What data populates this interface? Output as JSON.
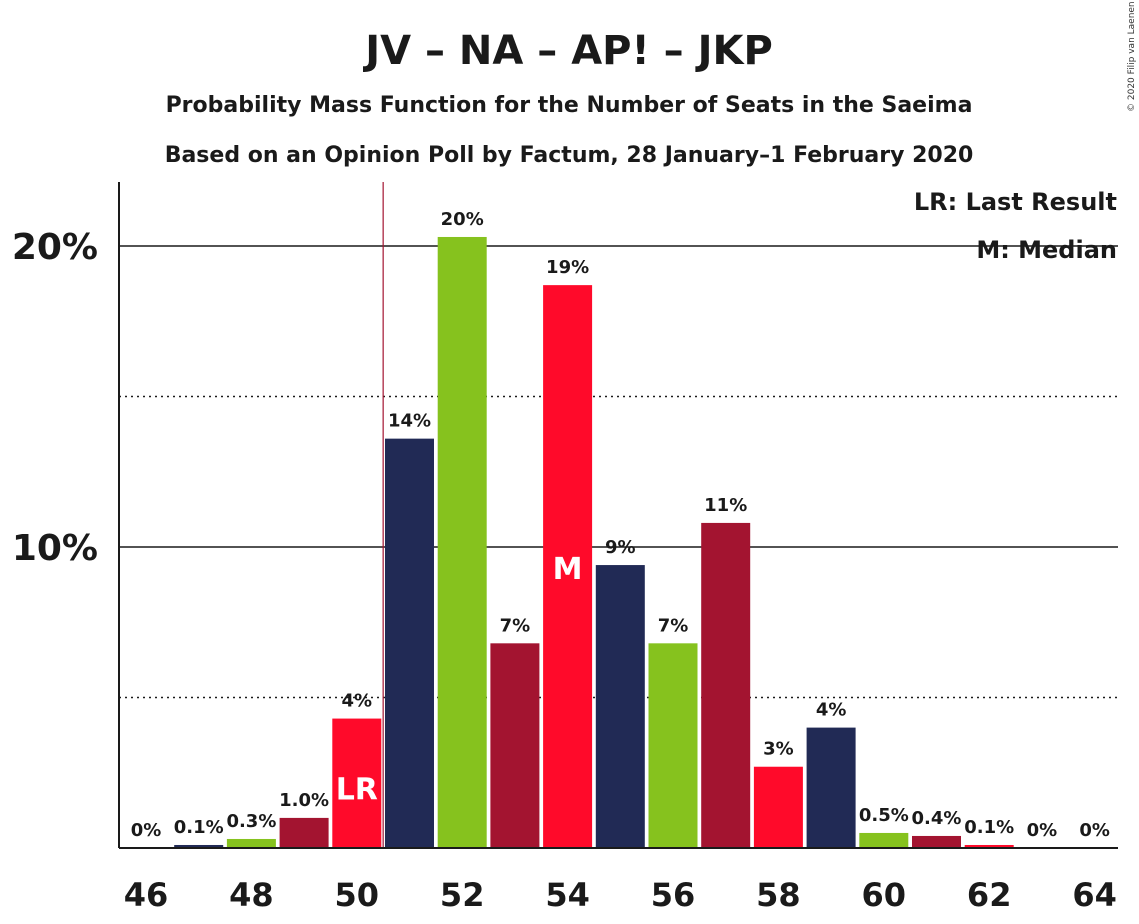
{
  "chart_data": {
    "type": "bar",
    "title": "JV – NA – AP! – JKP",
    "subtitle_1": "Probability Mass Function for the Number of Seats in the Saeima",
    "subtitle_2": "Based on an Opinion Poll by Factum, 28 January–1 February 2020",
    "credit": "© 2020 Filip van Laenen",
    "xlabel": "",
    "ylabel": "",
    "ylim": [
      0,
      22
    ],
    "x_tick_labels": [
      "46",
      "48",
      "50",
      "52",
      "54",
      "56",
      "58",
      "60",
      "62",
      "64"
    ],
    "y_tick_labels": [
      {
        "value": 10,
        "label": "10%"
      },
      {
        "value": 20,
        "label": "20%"
      }
    ],
    "grid": "solid at 10% and 20%, dotted at 5% and 15%",
    "legend": {
      "placement": "top-right",
      "entries": [
        "LR: Last Result",
        "M: Median"
      ]
    },
    "last_result_seat": 50.5,
    "last_result_marker": "LR",
    "median_marker": "M",
    "bars": [
      {
        "seat": 46,
        "value": 0.0,
        "label": "0%",
        "color": "#212a55"
      },
      {
        "seat": 47,
        "value": 0.1,
        "label": "0.1%",
        "color": "#212a55"
      },
      {
        "seat": 48,
        "value": 0.3,
        "label": "0.3%",
        "color": "#86c21e"
      },
      {
        "seat": 49,
        "value": 1.0,
        "label": "1.0%",
        "color": "#a31430"
      },
      {
        "seat": 50,
        "value": 4.3,
        "label": "4%",
        "color": "#ff0a2a",
        "marker": "LR"
      },
      {
        "seat": 51,
        "value": 13.6,
        "label": "14%",
        "color": "#212a55"
      },
      {
        "seat": 52,
        "value": 20.3,
        "label": "20%",
        "color": "#86c21e"
      },
      {
        "seat": 53,
        "value": 6.8,
        "label": "7%",
        "color": "#a31430"
      },
      {
        "seat": 54,
        "value": 18.7,
        "label": "19%",
        "color": "#ff0a2a",
        "marker": "M"
      },
      {
        "seat": 55,
        "value": 9.4,
        "label": "9%",
        "color": "#212a55"
      },
      {
        "seat": 56,
        "value": 6.8,
        "label": "7%",
        "color": "#86c21e"
      },
      {
        "seat": 57,
        "value": 10.8,
        "label": "11%",
        "color": "#a31430"
      },
      {
        "seat": 58,
        "value": 2.7,
        "label": "3%",
        "color": "#ff0a2a"
      },
      {
        "seat": 59,
        "value": 4.0,
        "label": "4%",
        "color": "#212a55"
      },
      {
        "seat": 60,
        "value": 0.5,
        "label": "0.5%",
        "color": "#86c21e"
      },
      {
        "seat": 61,
        "value": 0.4,
        "label": "0.4%",
        "color": "#a31430"
      },
      {
        "seat": 62,
        "value": 0.1,
        "label": "0.1%",
        "color": "#ff0a2a"
      },
      {
        "seat": 63,
        "value": 0.0,
        "label": "0%",
        "color": "#212a55"
      },
      {
        "seat": 64,
        "value": 0.0,
        "label": "0%",
        "color": "#86c21e"
      }
    ]
  }
}
